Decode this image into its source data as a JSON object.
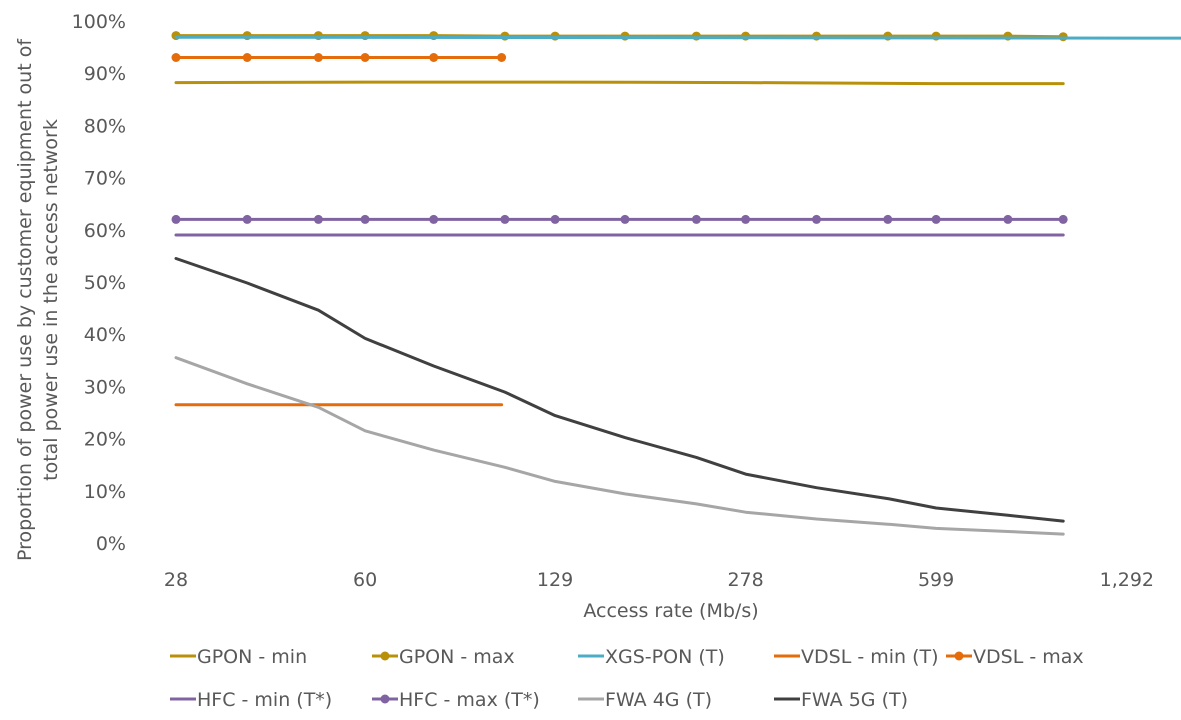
{
  "chart_data": {
    "type": "line",
    "title": "",
    "xlabel": "Access rate (Mb/s)",
    "ylabel_line1": "Proportion of power use by customer equipment out of",
    "ylabel_line2": "total power use in the access network",
    "x_scale": "log2",
    "x_ticks": [
      28,
      60,
      129,
      278,
      599,
      1292
    ],
    "x_tick_labels": [
      "28",
      "60",
      "129",
      "278",
      "599",
      "1,292"
    ],
    "y_ticks": [
      0,
      10,
      20,
      30,
      40,
      50,
      60,
      70,
      80,
      90,
      100
    ],
    "y_tick_labels": [
      "0%",
      "10%",
      "20%",
      "30%",
      "40%",
      "50%",
      "60%",
      "70%",
      "80%",
      "90%",
      "100%"
    ],
    "ylim": [
      0,
      100
    ],
    "grid": false,
    "legend_position": "bottom",
    "series": [
      {
        "name": "GPON - min",
        "color": "#B8900A",
        "markers": false,
        "x": [
          28,
          60,
          129,
          278,
          599,
          1000
        ],
        "y": [
          88.2,
          88.3,
          88.3,
          88.2,
          88.0,
          88.0
        ]
      },
      {
        "name": "GPON - max",
        "color": "#B8900A",
        "markers": true,
        "x": [
          28,
          37.3,
          49.7,
          60,
          79.1,
          105.4,
          129,
          171,
          228,
          278,
          370,
          493,
          599,
          800,
          1000
        ],
        "y": [
          97.2,
          97.2,
          97.2,
          97.2,
          97.2,
          97.1,
          97.1,
          97.1,
          97.1,
          97.1,
          97.1,
          97.1,
          97.1,
          97.1,
          97.0
        ]
      },
      {
        "name": "XGS-PON (T)",
        "color": "#4BACC6",
        "markers": false,
        "x": [
          28,
          2048
        ],
        "y": [
          96.9,
          96.7
        ]
      },
      {
        "name": "VDSL - min (T)",
        "color": "#E46C0A",
        "markers": false,
        "x": [
          28,
          104
        ],
        "y": [
          26.5,
          26.5
        ]
      },
      {
        "name": "VDSL - max",
        "color": "#E46C0A",
        "markers": true,
        "x": [
          28,
          37.3,
          49.7,
          60,
          79.1,
          104
        ],
        "y": [
          93.0,
          93.0,
          93.0,
          93.0,
          93.0,
          93.0
        ]
      },
      {
        "name": "HFC - min (T*)",
        "color": "#8064A2",
        "markers": false,
        "x": [
          28,
          1000
        ],
        "y": [
          59.0,
          59.0
        ]
      },
      {
        "name": "HFC - max (T*)",
        "color": "#8064A2",
        "markers": true,
        "x": [
          28,
          37.3,
          49.7,
          60,
          79.1,
          105.4,
          129,
          171,
          228,
          278,
          370,
          493,
          599,
          800,
          1000
        ],
        "y": [
          62.0,
          62.0,
          62.0,
          62.0,
          62.0,
          62.0,
          62.0,
          62.0,
          62.0,
          62.0,
          62.0,
          62.0,
          62.0,
          62.0,
          62.0
        ]
      },
      {
        "name": "FWA 4G (T)",
        "color": "#A6A6A6",
        "markers": false,
        "x": [
          28,
          37.3,
          49.7,
          60,
          79.1,
          105.4,
          129,
          171,
          228,
          278,
          370,
          493,
          599,
          800,
          1000
        ],
        "y": [
          35.5,
          30.5,
          26.0,
          21.5,
          17.8,
          14.5,
          11.8,
          9.4,
          7.5,
          5.9,
          4.6,
          3.6,
          2.8,
          2.2,
          1.7
        ]
      },
      {
        "name": "FWA 5G (T)",
        "color": "#404040",
        "markers": false,
        "x": [
          28,
          37.3,
          49.7,
          60,
          79.1,
          105.4,
          129,
          171,
          228,
          278,
          370,
          493,
          599,
          800,
          1000
        ],
        "y": [
          54.5,
          49.8,
          44.6,
          39.2,
          33.9,
          28.9,
          24.4,
          20.2,
          16.4,
          13.2,
          10.6,
          8.5,
          6.7,
          5.3,
          4.2
        ]
      }
    ]
  }
}
